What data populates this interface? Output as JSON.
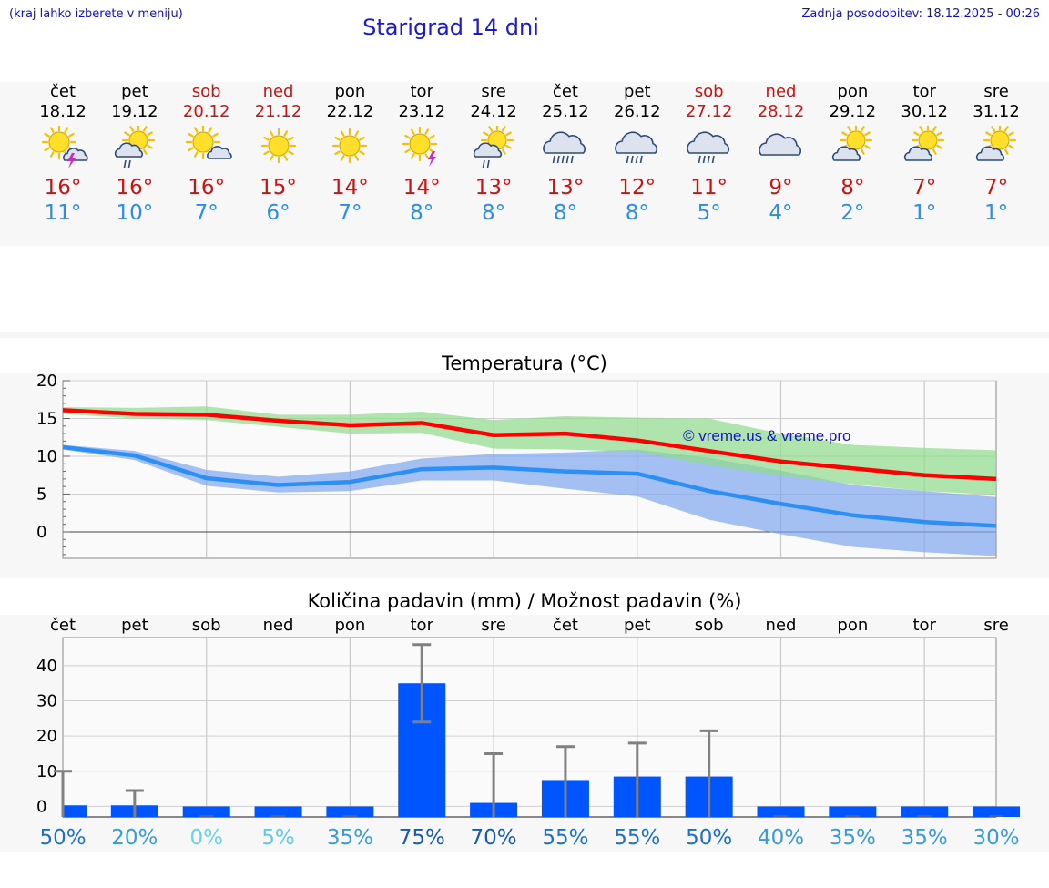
{
  "header": {
    "location_hint": "(kraj lahko izberete v meniju)",
    "title": "Starigrad 14 dni",
    "updated": "Zadnja posodobitev: 18.12.2025 - 00:26"
  },
  "colors": {
    "weekday": "#000000",
    "weekend": "#cc1111",
    "max_temp": "#cc1111",
    "min_temp": "#2a8cf0",
    "max_line": "#ff0000",
    "min_line": "#2b8ff5",
    "max_band": "#8fdc8a",
    "min_band": "#7fa6ee",
    "bar": "#0055ff",
    "error_bar": "#808080"
  },
  "days": [
    {
      "name": "čet",
      "date": "18.12",
      "weekend": false,
      "icon": "sun-cloud-lightning-icon",
      "max": "16°",
      "min": "11°"
    },
    {
      "name": "pet",
      "date": "19.12",
      "weekend": false,
      "icon": "sun-cloud-rain-icon",
      "max": "16°",
      "min": "10°"
    },
    {
      "name": "sob",
      "date": "20.12",
      "weekend": true,
      "icon": "sun-small-cloud-icon",
      "max": "16°",
      "min": "7°"
    },
    {
      "name": "ned",
      "date": "21.12",
      "weekend": true,
      "icon": "sun-icon",
      "max": "15°",
      "min": "6°"
    },
    {
      "name": "pon",
      "date": "22.12",
      "weekend": false,
      "icon": "sun-icon",
      "max": "14°",
      "min": "7°"
    },
    {
      "name": "tor",
      "date": "23.12",
      "weekend": false,
      "icon": "sun-lightning-icon",
      "max": "14°",
      "min": "8°"
    },
    {
      "name": "sre",
      "date": "24.12",
      "weekend": false,
      "icon": "sun-cloud-rain-icon",
      "max": "13°",
      "min": "8°"
    },
    {
      "name": "čet",
      "date": "25.12",
      "weekend": false,
      "icon": "cloud-heavy-rain-icon",
      "max": "13°",
      "min": "8°"
    },
    {
      "name": "pet",
      "date": "26.12",
      "weekend": false,
      "icon": "cloud-rain-icon",
      "max": "12°",
      "min": "8°"
    },
    {
      "name": "sob",
      "date": "27.12",
      "weekend": true,
      "icon": "cloud-rain-icon",
      "max": "11°",
      "min": "5°"
    },
    {
      "name": "ned",
      "date": "28.12",
      "weekend": true,
      "icon": "overcast-icon",
      "max": "9°",
      "min": "4°"
    },
    {
      "name": "pon",
      "date": "29.12",
      "weekend": false,
      "icon": "sun-cloud-icon",
      "max": "8°",
      "min": "2°"
    },
    {
      "name": "tor",
      "date": "30.12",
      "weekend": false,
      "icon": "sun-cloud-icon",
      "max": "7°",
      "min": "1°"
    },
    {
      "name": "sre",
      "date": "31.12",
      "weekend": false,
      "icon": "sun-cloud-icon",
      "max": "7°",
      "min": "1°"
    }
  ],
  "temperature_chart": {
    "title": "Temperatura (°C)",
    "watermark": "© vreme.us & vreme.pro"
  },
  "precip_chart": {
    "title": "Količina padavin (mm) / Možnost padavin (%)",
    "pct_labels": [
      "50%",
      "20%",
      "0%",
      "5%",
      "35%",
      "75%",
      "70%",
      "55%",
      "55%",
      "50%",
      "40%",
      "35%",
      "35%",
      "30%"
    ],
    "pct_colors": [
      "#1e6fc8",
      "#3a9bd8",
      "#6ad2e8",
      "#62c8e6",
      "#3a9bd8",
      "#1558b5",
      "#1558b5",
      "#1e6fc8",
      "#1e6fc8",
      "#1e6fc8",
      "#3a9bd8",
      "#3a9bd8",
      "#3a9bd8",
      "#3a9bd8"
    ]
  },
  "chart_data": [
    {
      "type": "line",
      "title": "Temperatura (°C)",
      "xlabel": "",
      "ylabel": "°C",
      "ylim": [
        -3.5,
        20
      ],
      "yticks": [
        0,
        5,
        10,
        15,
        20
      ],
      "x": [
        0,
        1,
        2,
        3,
        4,
        5,
        6,
        7,
        8,
        9,
        10,
        11,
        12,
        13
      ],
      "series": [
        {
          "name": "max",
          "values": [
            16.1,
            15.6,
            15.5,
            14.7,
            14.1,
            14.4,
            12.8,
            13.0,
            12.1,
            10.7,
            9.3,
            8.4,
            7.5,
            7.0
          ],
          "band_low": [
            15.6,
            15.0,
            14.8,
            13.9,
            13.0,
            13.1,
            11.0,
            10.9,
            10.6,
            8.8,
            7.4,
            6.3,
            5.4,
            4.9
          ],
          "band_high": [
            16.5,
            16.4,
            16.6,
            15.5,
            15.5,
            15.9,
            14.8,
            15.3,
            15.1,
            15.0,
            13.0,
            11.5,
            11.1,
            10.8
          ]
        },
        {
          "name": "min",
          "values": [
            11.2,
            10.1,
            7.1,
            6.2,
            6.6,
            8.3,
            8.5,
            8.0,
            7.7,
            5.4,
            3.7,
            2.2,
            1.3,
            0.8
          ],
          "band_low": [
            10.9,
            9.5,
            6.1,
            5.2,
            5.4,
            6.8,
            6.8,
            5.7,
            4.7,
            1.6,
            -0.3,
            -2.0,
            -2.7,
            -3.2
          ],
          "band_high": [
            11.5,
            10.7,
            8.2,
            7.3,
            8.0,
            9.7,
            10.3,
            10.5,
            10.9,
            9.8,
            8.1,
            6.2,
            5.4,
            4.6
          ]
        }
      ]
    },
    {
      "type": "bar",
      "title": "Količina padavin (mm) / Možnost padavin (%)",
      "categories": [
        "čet",
        "pet",
        "sob",
        "ned",
        "pon",
        "tor",
        "sre",
        "čet",
        "pet",
        "sob",
        "ned",
        "pon",
        "tor",
        "sre"
      ],
      "values": [
        0.3,
        0.3,
        0,
        0,
        0,
        35,
        1,
        7.5,
        8.5,
        8.5,
        0,
        0,
        0,
        0
      ],
      "error_high": [
        10,
        4.5,
        0,
        0,
        0,
        46,
        15,
        17,
        18,
        21.5,
        0,
        0,
        0,
        0
      ],
      "error_low": [
        0,
        0,
        0,
        0,
        0,
        24,
        0,
        0,
        0,
        0,
        0,
        0,
        0,
        0
      ],
      "probability_pct": [
        50,
        20,
        0,
        5,
        35,
        75,
        70,
        55,
        55,
        50,
        40,
        35,
        35,
        30
      ],
      "ylim": [
        -3,
        48
      ],
      "yticks": [
        0,
        10,
        20,
        30,
        40
      ]
    }
  ]
}
